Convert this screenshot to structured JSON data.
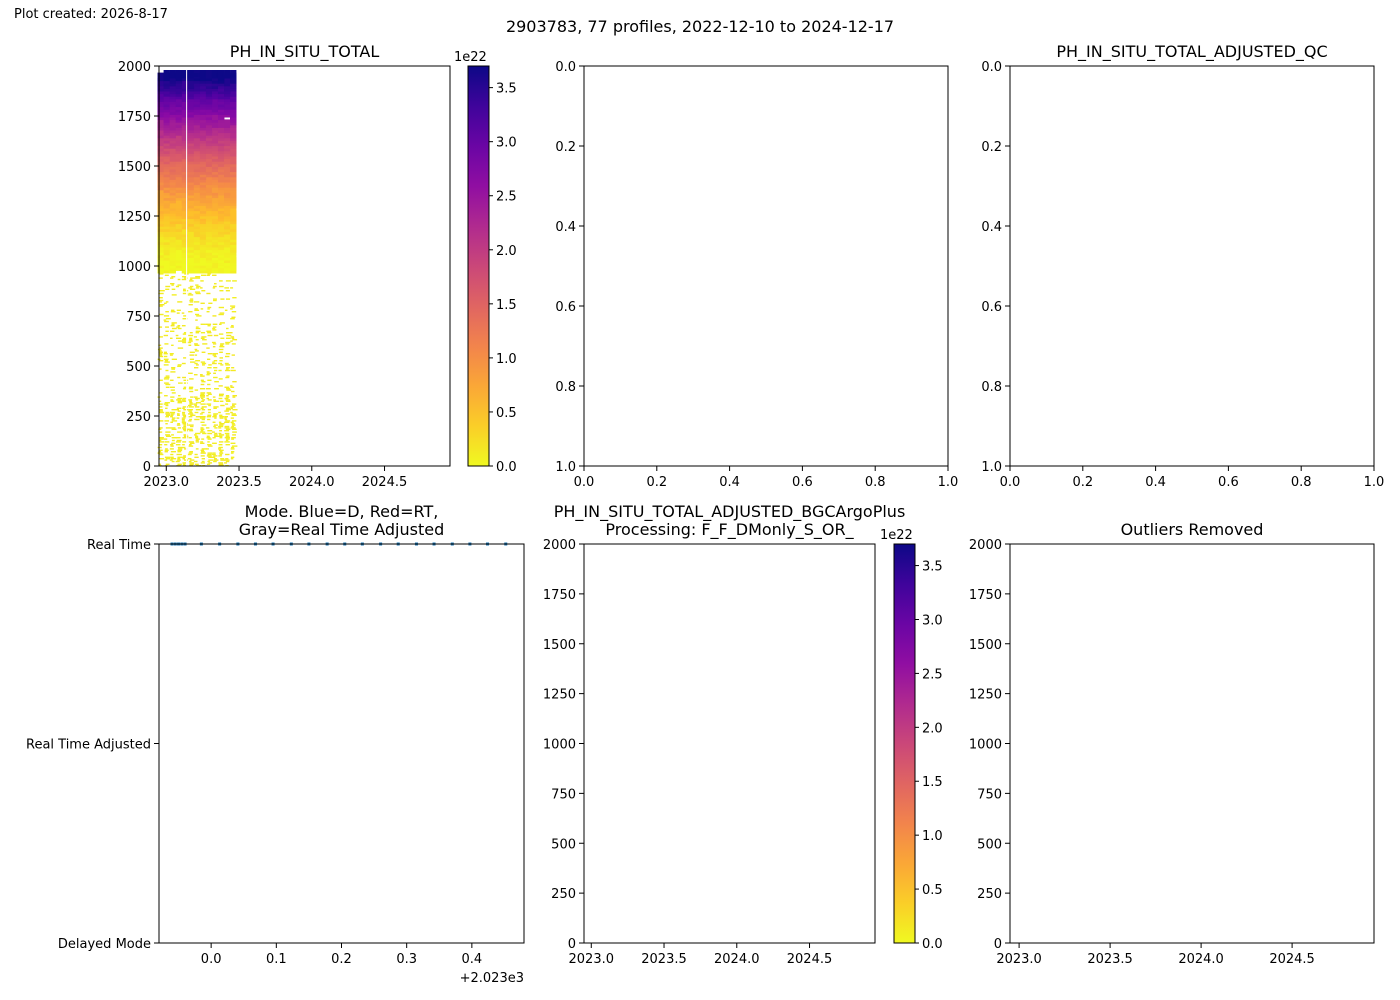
{
  "header": {
    "plot_created": "Plot created: 2026-8-17",
    "suptitle": "2903783, 77 profiles, 2022-12-10 to 2024-12-17"
  },
  "chart_data": [
    {
      "id": "raw",
      "type": "heatmap",
      "title": "PH_IN_SITU_TOTAL",
      "xlim": [
        2022.95,
        2024.95
      ],
      "xticks": [
        2023.0,
        2023.5,
        2024.0,
        2024.5
      ],
      "xticklabels": [
        "2023.0",
        "2023.5",
        "2024.0",
        "2024.5"
      ],
      "ylim": [
        2000,
        0
      ],
      "yticks": [
        0,
        250,
        500,
        750,
        1000,
        1250,
        1500,
        1750,
        2000
      ],
      "yticklabels": [
        "0",
        "250",
        "500",
        "750",
        "1000",
        "1250",
        "1500",
        "1750",
        "2000"
      ],
      "time_range": [
        2022.94,
        2023.48
      ],
      "colormap": "plasma_r",
      "colorbar": {
        "offset_label": "1e22",
        "range": [
          0.0,
          3.7
        ],
        "ticks": [
          0.0,
          0.5,
          1.0,
          1.5,
          2.0,
          2.5,
          3.0,
          3.5
        ],
        "ticklabels": [
          "0.0",
          "0.5",
          "1.0",
          "1.5",
          "2.0",
          "2.5",
          "3.0",
          "3.5"
        ]
      }
    },
    {
      "id": "empty1",
      "type": "scatter",
      "title": "",
      "xlim": [
        0,
        1
      ],
      "ylim": [
        0,
        1
      ],
      "xticklabels": [
        "0.0",
        "0.2",
        "0.4",
        "0.6",
        "0.8",
        "1.0"
      ],
      "yticklabels": [
        "0.0",
        "0.2",
        "0.4",
        "0.6",
        "0.8",
        "1.0"
      ]
    },
    {
      "id": "qc",
      "type": "scatter",
      "title": "PH_IN_SITU_TOTAL_ADJUSTED_QC",
      "xlim": [
        0,
        1
      ],
      "ylim": [
        0,
        1
      ],
      "xticklabels": [
        "0.0",
        "0.2",
        "0.4",
        "0.6",
        "0.8",
        "1.0"
      ],
      "yticklabels": [
        "0.0",
        "0.2",
        "0.4",
        "0.6",
        "0.8",
        "1.0"
      ]
    },
    {
      "id": "mode",
      "type": "scatter",
      "title": [
        "Mode. Blue=D, Red=RT,",
        "Gray=Real Time Adjusted"
      ],
      "xlim": [
        -0.08,
        0.48
      ],
      "xticks": [
        0.0,
        0.1,
        0.2,
        0.3,
        0.4
      ],
      "xticklabels": [
        "0.0",
        "0.1",
        "0.2",
        "0.3",
        "0.4"
      ],
      "x_offset_label": "+2.023e3",
      "ylim": [
        0,
        2
      ],
      "yticklabels": [
        "Real Time",
        "Real Time Adjusted",
        "Delayed Mode"
      ],
      "points": {
        "x": [
          -0.06,
          -0.055,
          -0.05,
          -0.045,
          -0.04,
          -0.015,
          0.013,
          0.041,
          0.068,
          0.095,
          0.123,
          0.15,
          0.178,
          0.205,
          0.232,
          0.26,
          0.287,
          0.315,
          0.342,
          0.37,
          0.397,
          0.424,
          0.452
        ],
        "y": [
          0,
          0,
          0,
          0,
          0,
          0,
          0,
          0,
          0,
          0,
          0,
          0,
          0,
          0,
          0,
          0,
          0,
          0,
          0,
          0,
          0,
          0,
          0
        ],
        "color": "#1f77b4"
      }
    },
    {
      "id": "adjusted",
      "type": "heatmap",
      "title": [
        "PH_IN_SITU_TOTAL_ADJUSTED_BGCArgoPlus",
        "Processing: F_F_DMonly_S_OR_"
      ],
      "xlim": [
        2022.95,
        2024.95
      ],
      "xticks": [
        2023.0,
        2023.5,
        2024.0,
        2024.5
      ],
      "xticklabels": [
        "2023.0",
        "2023.5",
        "2024.0",
        "2024.5"
      ],
      "ylim": [
        2000,
        0
      ],
      "yticks": [
        0,
        250,
        500,
        750,
        1000,
        1250,
        1500,
        1750,
        2000
      ],
      "yticklabels": [
        "0",
        "250",
        "500",
        "750",
        "1000",
        "1250",
        "1500",
        "1750",
        "2000"
      ],
      "colormap": "plasma_r",
      "colorbar": {
        "offset_label": "1e22",
        "range": [
          0.0,
          3.7
        ],
        "ticks": [
          0.0,
          0.5,
          1.0,
          1.5,
          2.0,
          2.5,
          3.0,
          3.5
        ],
        "ticklabels": [
          "0.0",
          "0.5",
          "1.0",
          "1.5",
          "2.0",
          "2.5",
          "3.0",
          "3.5"
        ]
      }
    },
    {
      "id": "outliers",
      "type": "scatter",
      "title": "Outliers Removed",
      "xlim": [
        2022.95,
        2024.95
      ],
      "xticks": [
        2023.0,
        2023.5,
        2024.0,
        2024.5
      ],
      "xticklabels": [
        "2023.0",
        "2023.5",
        "2024.0",
        "2024.5"
      ],
      "ylim": [
        2000,
        0
      ],
      "yticks": [
        0,
        250,
        500,
        750,
        1000,
        1250,
        1500,
        1750,
        2000
      ],
      "yticklabels": [
        "0",
        "250",
        "500",
        "750",
        "1000",
        "1250",
        "1500",
        "1750",
        "2000"
      ]
    }
  ]
}
